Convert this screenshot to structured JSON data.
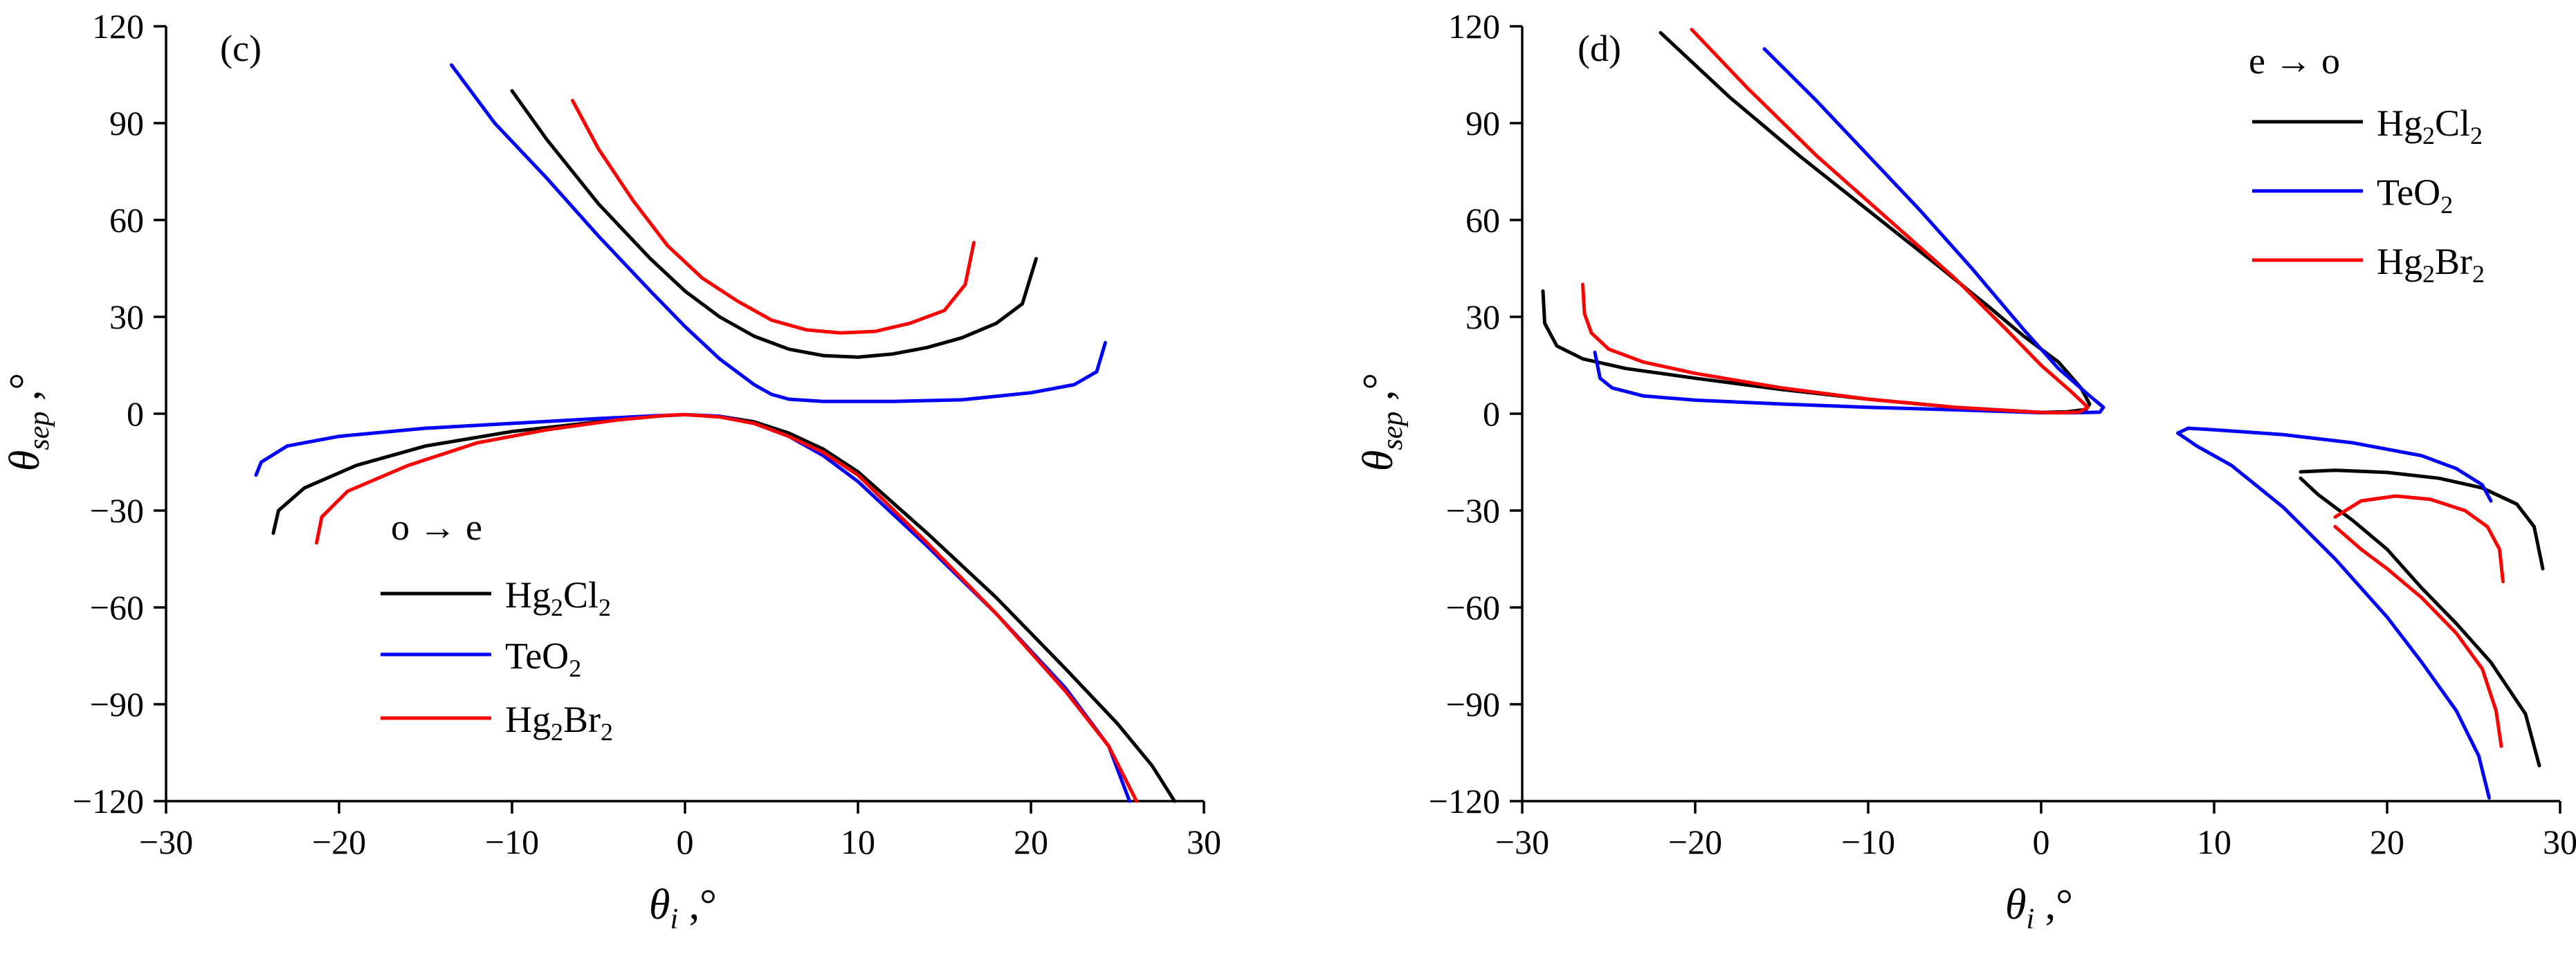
{
  "figure": {
    "panels": [
      {
        "id": "c",
        "label": "(c)",
        "legend_title": "o → e",
        "xlabel": "θi ,°",
        "ylabel": "θsep ,°",
        "xlim": [
          -30,
          30
        ],
        "ylim": [
          -120,
          120
        ],
        "x_ticks": [
          -30,
          -20,
          -10,
          0,
          10,
          20,
          30
        ],
        "y_ticks": [
          -120,
          -90,
          -60,
          -30,
          0,
          30,
          60,
          90,
          120
        ],
        "x_tick_labels": [
          "−30",
          "−20",
          "−10",
          "0",
          "10",
          "20",
          "30"
        ],
        "y_tick_labels": [
          "−120",
          "−90",
          "−60",
          "−30",
          "0",
          "30",
          "60",
          "90",
          "120"
        ]
      },
      {
        "id": "d",
        "label": "(d)",
        "legend_title": "e → o",
        "xlabel": "θi ,°",
        "ylabel": "θsep ,°",
        "xlim": [
          -30,
          30
        ],
        "ylim": [
          -120,
          120
        ],
        "x_ticks": [
          -30,
          -20,
          -10,
          0,
          10,
          20,
          30
        ],
        "y_ticks": [
          -120,
          -90,
          -60,
          -30,
          0,
          30,
          60,
          90,
          120
        ],
        "x_tick_labels": [
          "−30",
          "−20",
          "−10",
          "0",
          "10",
          "20",
          "30"
        ],
        "y_tick_labels": [
          "−120",
          "−90",
          "−60",
          "−30",
          "0",
          "30",
          "60",
          "90",
          "120"
        ]
      }
    ]
  },
  "chart_data": [
    {
      "type": "line",
      "panel": "c",
      "title": "(c)",
      "xlabel": "θi ,°",
      "ylabel": "θsep ,°",
      "xlim": [
        -30,
        30
      ],
      "ylim": [
        -120,
        120
      ],
      "legend_title": "o → e",
      "series": [
        {
          "name": "Hg2Cl2",
          "color": "#000000",
          "segments": [
            [
              [
                -10,
                100
              ],
              [
                -8,
                85
              ],
              [
                -5,
                65
              ],
              [
                -2,
                48
              ],
              [
                0,
                38
              ],
              [
                2,
                30
              ],
              [
                4,
                24
              ],
              [
                6,
                20
              ],
              [
                8,
                18
              ],
              [
                10,
                17.5
              ],
              [
                12,
                18.5
              ],
              [
                14,
                20.5
              ],
              [
                16,
                23.5
              ],
              [
                18,
                28
              ],
              [
                19.5,
                34
              ],
              [
                20.3,
                48
              ]
            ],
            [
              [
                -23.8,
                -37
              ],
              [
                -23.5,
                -30
              ],
              [
                -22,
                -23
              ],
              [
                -19,
                -16
              ],
              [
                -15,
                -10
              ],
              [
                -10,
                -5.5
              ],
              [
                -5,
                -2.5
              ],
              [
                -2,
                -0.8
              ],
              [
                0,
                -0.3
              ],
              [
                2,
                -0.8
              ],
              [
                4,
                -2.5
              ],
              [
                6,
                -6
              ],
              [
                8,
                -11
              ],
              [
                10,
                -18
              ],
              [
                14,
                -37
              ],
              [
                18,
                -57
              ],
              [
                22,
                -79
              ],
              [
                25,
                -96
              ],
              [
                27,
                -109
              ],
              [
                28.3,
                -120
              ]
            ]
          ]
        },
        {
          "name": "TeO2",
          "color": "#0000ff",
          "segments": [
            [
              [
                -13.5,
                108
              ],
              [
                -11,
                90
              ],
              [
                -8,
                73
              ],
              [
                -5,
                55
              ],
              [
                -2,
                38
              ],
              [
                0,
                27
              ],
              [
                2,
                17
              ],
              [
                4,
                9
              ],
              [
                5,
                6
              ],
              [
                6,
                4.5
              ],
              [
                8,
                3.8
              ],
              [
                12,
                3.8
              ],
              [
                16,
                4.3
              ],
              [
                20,
                6.5
              ],
              [
                22.5,
                9
              ],
              [
                23.8,
                13
              ],
              [
                24.3,
                22
              ]
            ],
            [
              [
                -24.8,
                -19
              ],
              [
                -24.5,
                -15
              ],
              [
                -23,
                -10
              ],
              [
                -20,
                -7
              ],
              [
                -15,
                -4.5
              ],
              [
                -10,
                -3
              ],
              [
                -5,
                -1.5
              ],
              [
                -2,
                -0.7
              ],
              [
                0,
                -0.3
              ],
              [
                2,
                -0.8
              ],
              [
                4,
                -3
              ],
              [
                6,
                -7
              ],
              [
                8,
                -13
              ],
              [
                10,
                -21
              ],
              [
                14,
                -41
              ],
              [
                18,
                -62
              ],
              [
                22,
                -85
              ],
              [
                24.5,
                -103
              ],
              [
                25.7,
                -120
              ]
            ]
          ]
        },
        {
          "name": "Hg2Br2",
          "color": "#ff0000",
          "segments": [
            [
              [
                -6.5,
                97
              ],
              [
                -5,
                82
              ],
              [
                -3,
                66
              ],
              [
                -1,
                52
              ],
              [
                1,
                42
              ],
              [
                3,
                35
              ],
              [
                5,
                29
              ],
              [
                7,
                26
              ],
              [
                9,
                25
              ],
              [
                11,
                25.5
              ],
              [
                13,
                28
              ],
              [
                15,
                32
              ],
              [
                16.2,
                40
              ],
              [
                16.7,
                53
              ]
            ],
            [
              [
                -21.3,
                -40
              ],
              [
                -21,
                -32
              ],
              [
                -19.5,
                -24
              ],
              [
                -16,
                -16
              ],
              [
                -12,
                -9
              ],
              [
                -8,
                -5
              ],
              [
                -4,
                -2
              ],
              [
                -1,
                -0.5
              ],
              [
                0,
                -0.3
              ],
              [
                2,
                -1
              ],
              [
                4,
                -3
              ],
              [
                6,
                -7
              ],
              [
                8,
                -12
              ],
              [
                10,
                -19
              ],
              [
                14,
                -40
              ],
              [
                18,
                -62
              ],
              [
                22,
                -86
              ],
              [
                24.5,
                -103
              ],
              [
                26.1,
                -120
              ]
            ]
          ]
        }
      ]
    },
    {
      "type": "line",
      "panel": "d",
      "title": "(d)",
      "xlabel": "θi ,°",
      "ylabel": "θsep ,°",
      "xlim": [
        -30,
        30
      ],
      "ylim": [
        -120,
        120
      ],
      "legend_title": "e → o",
      "series": [
        {
          "name": "Hg2Cl2",
          "color": "#000000",
          "segments": [
            [
              [
                -22,
                118
              ],
              [
                -18,
                98
              ],
              [
                -14,
                80
              ],
              [
                -10,
                63
              ],
              [
                -6,
                46
              ],
              [
                -3,
                33
              ],
              [
                -1,
                24
              ],
              [
                1,
                16
              ],
              [
                2.3,
                8
              ],
              [
                2.8,
                3
              ],
              [
                2.6,
                1.3
              ],
              [
                1.5,
                0.6
              ],
              [
                0,
                0.4
              ],
              [
                -5,
                2
              ],
              [
                -10,
                4.5
              ],
              [
                -15,
                7.5
              ],
              [
                -20,
                11
              ],
              [
                -24,
                14
              ],
              [
                -26.5,
                17
              ],
              [
                -28,
                21
              ],
              [
                -28.7,
                28
              ],
              [
                -28.8,
                38
              ]
            ],
            [
              [
                15,
                -18
              ],
              [
                17,
                -17.5
              ],
              [
                20,
                -18.2
              ],
              [
                23,
                -20
              ],
              [
                25.5,
                -23
              ],
              [
                27.5,
                -28
              ],
              [
                28.5,
                -35
              ],
              [
                29,
                -48
              ]
            ],
            [
              [
                15,
                -20
              ],
              [
                16,
                -25
              ],
              [
                18,
                -33
              ],
              [
                20,
                -42
              ],
              [
                22,
                -54
              ],
              [
                24,
                -65
              ],
              [
                26,
                -77
              ],
              [
                28,
                -93
              ],
              [
                28.8,
                -109
              ]
            ]
          ]
        },
        {
          "name": "TeO2",
          "color": "#0000ff",
          "segments": [
            [
              [
                -16,
                113
              ],
              [
                -13,
                97
              ],
              [
                -10,
                80
              ],
              [
                -7,
                63
              ],
              [
                -4,
                45
              ],
              [
                -1,
                26
              ],
              [
                1,
                14
              ],
              [
                2.7,
                6
              ],
              [
                3.6,
                2
              ],
              [
                3.4,
                0.5
              ],
              [
                2,
                0.3
              ],
              [
                0,
                0.3
              ],
              [
                -5,
                1.2
              ],
              [
                -10,
                2
              ],
              [
                -15,
                3
              ],
              [
                -20,
                4.2
              ],
              [
                -23,
                5.5
              ],
              [
                -24.8,
                8
              ],
              [
                -25.5,
                11
              ],
              [
                -25.8,
                19
              ]
            ],
            [
              [
                26,
                -27
              ],
              [
                25.5,
                -22
              ],
              [
                24,
                -17
              ],
              [
                22,
                -13
              ],
              [
                18,
                -9
              ],
              [
                14,
                -6.5
              ],
              [
                10,
                -5
              ],
              [
                8.5,
                -4.5
              ],
              [
                7.9,
                -6
              ],
              [
                9,
                -10
              ],
              [
                11,
                -16
              ],
              [
                14,
                -29
              ],
              [
                17,
                -45
              ],
              [
                20,
                -63
              ],
              [
                22,
                -77
              ],
              [
                24,
                -92
              ],
              [
                25.3,
                -106
              ],
              [
                25.9,
                -119
              ]
            ]
          ]
        },
        {
          "name": "Hg2Br2",
          "color": "#ff0000",
          "segments": [
            [
              [
                -20.2,
                119
              ],
              [
                -17,
                101
              ],
              [
                -13,
                80
              ],
              [
                -9,
                61
              ],
              [
                -5,
                42
              ],
              [
                -2,
                26
              ],
              [
                0,
                15
              ],
              [
                1.7,
                7
              ],
              [
                2.7,
                2
              ],
              [
                2.2,
                0.5
              ],
              [
                1,
                0.3
              ],
              [
                0,
                0.4
              ],
              [
                -5,
                2
              ],
              [
                -10,
                4.5
              ],
              [
                -15,
                8
              ],
              [
                -20,
                12.5
              ],
              [
                -23,
                16
              ],
              [
                -25,
                20
              ],
              [
                -26,
                25
              ],
              [
                -26.4,
                31
              ],
              [
                -26.5,
                40
              ]
            ],
            [
              [
                17,
                -32
              ],
              [
                18.5,
                -27
              ],
              [
                20.5,
                -25.5
              ],
              [
                22.5,
                -26.5
              ],
              [
                24.5,
                -30
              ],
              [
                25.8,
                -35
              ],
              [
                26.5,
                -42
              ],
              [
                26.7,
                -52
              ]
            ],
            [
              [
                17,
                -35
              ],
              [
                18.5,
                -42
              ],
              [
                20,
                -48
              ],
              [
                22,
                -57
              ],
              [
                24,
                -68
              ],
              [
                25.5,
                -79
              ],
              [
                26.3,
                -92
              ],
              [
                26.6,
                -103
              ]
            ]
          ]
        }
      ]
    }
  ]
}
